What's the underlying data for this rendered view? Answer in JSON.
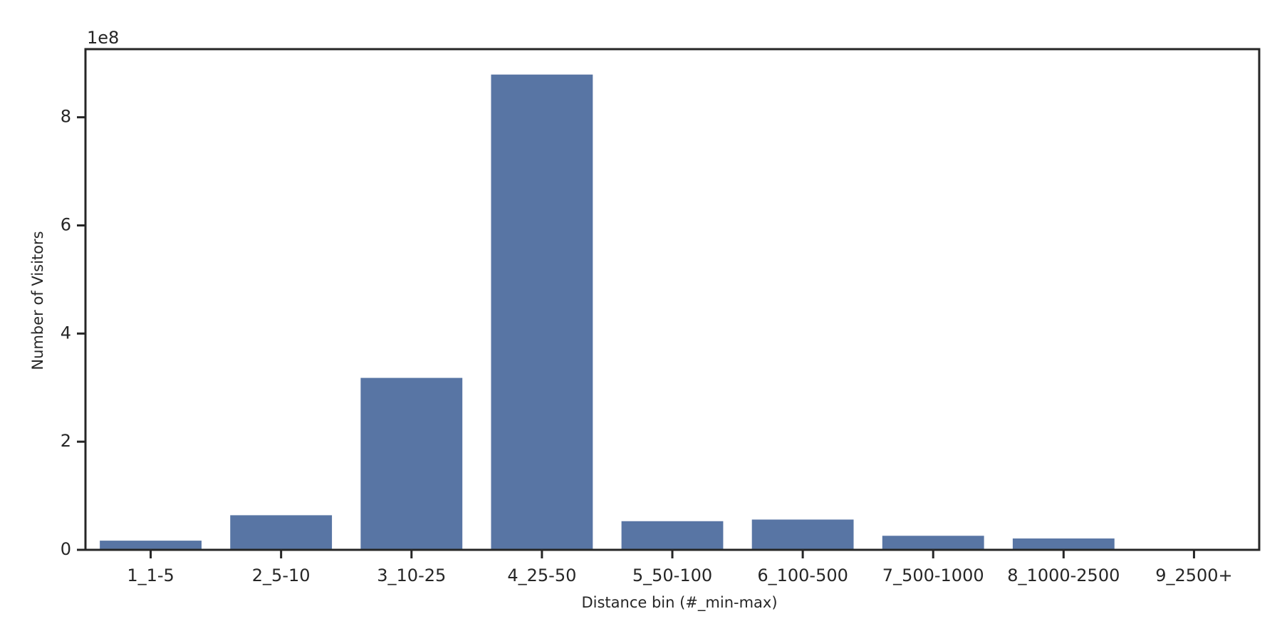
{
  "chart_data": {
    "type": "bar",
    "x_label": "Distance bin (#_min-max)",
    "y_label": "Number of Visitors",
    "offset_label": "1e8",
    "categories": [
      "1_1-5",
      "2_5-10",
      "3_10-25",
      "4_25-50",
      "5_50-100",
      "6_100-500",
      "7_500-1000",
      "8_1000-2500",
      "9_2500+"
    ],
    "values": [
      17000000,
      64000000,
      318000000,
      879000000,
      53000000,
      56000000,
      26000000,
      21000000,
      300000
    ],
    "color": "#5875a4",
    "ylim": [
      0,
      926000000
    ],
    "yticks": [
      {
        "value": 0,
        "label": "0"
      },
      {
        "value": 200000000,
        "label": "2"
      },
      {
        "value": 400000000,
        "label": "4"
      },
      {
        "value": 600000000,
        "label": "6"
      },
      {
        "value": 800000000,
        "label": "8"
      }
    ],
    "grid": false
  }
}
